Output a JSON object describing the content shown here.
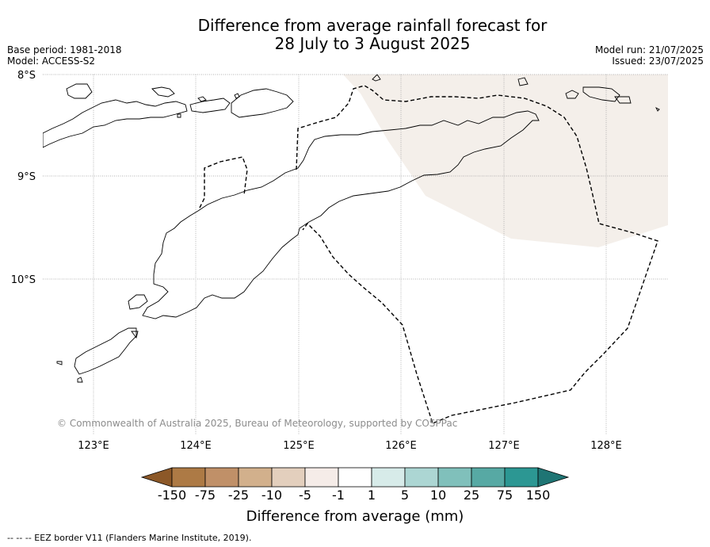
{
  "title_line1": "Difference from average rainfall forecast for",
  "title_line2": "28 July to 3 August 2025",
  "base_period": "Base period: 1981-2018",
  "model": "Model: ACCESS-S2",
  "model_run": "Model run: 21/07/2025",
  "issued": "Issued: 23/07/2025",
  "copyright": "© Commonwealth of Australia 2025, Bureau of Meteorology, supported by COSPPac",
  "footnote": "--  --  -- EEZ border V11 (Flanders Marine Institute, 2019).",
  "map": {
    "lat_labels": [
      "8°S",
      "9°S",
      "10°S"
    ],
    "lon_labels": [
      "123°E",
      "124°E",
      "125°E",
      "126°E",
      "127°E",
      "128°E"
    ],
    "drier_region_color": "#f4efea"
  },
  "colorbar": {
    "title": "Difference from average (mm)",
    "tick_labels": [
      "-150",
      "-75",
      "-25",
      "-10",
      "-5",
      "-1",
      "1",
      "5",
      "10",
      "25",
      "75",
      "150"
    ],
    "colors": [
      "#8c5828",
      "#ad7a45",
      "#c09068",
      "#d2b08c",
      "#e3cfbd",
      "#f5ece8",
      "#ffffff",
      "#d7ebe9",
      "#acd6d3",
      "#80c0bb",
      "#57a9a4",
      "#2c9793",
      "#1f7574"
    ]
  }
}
